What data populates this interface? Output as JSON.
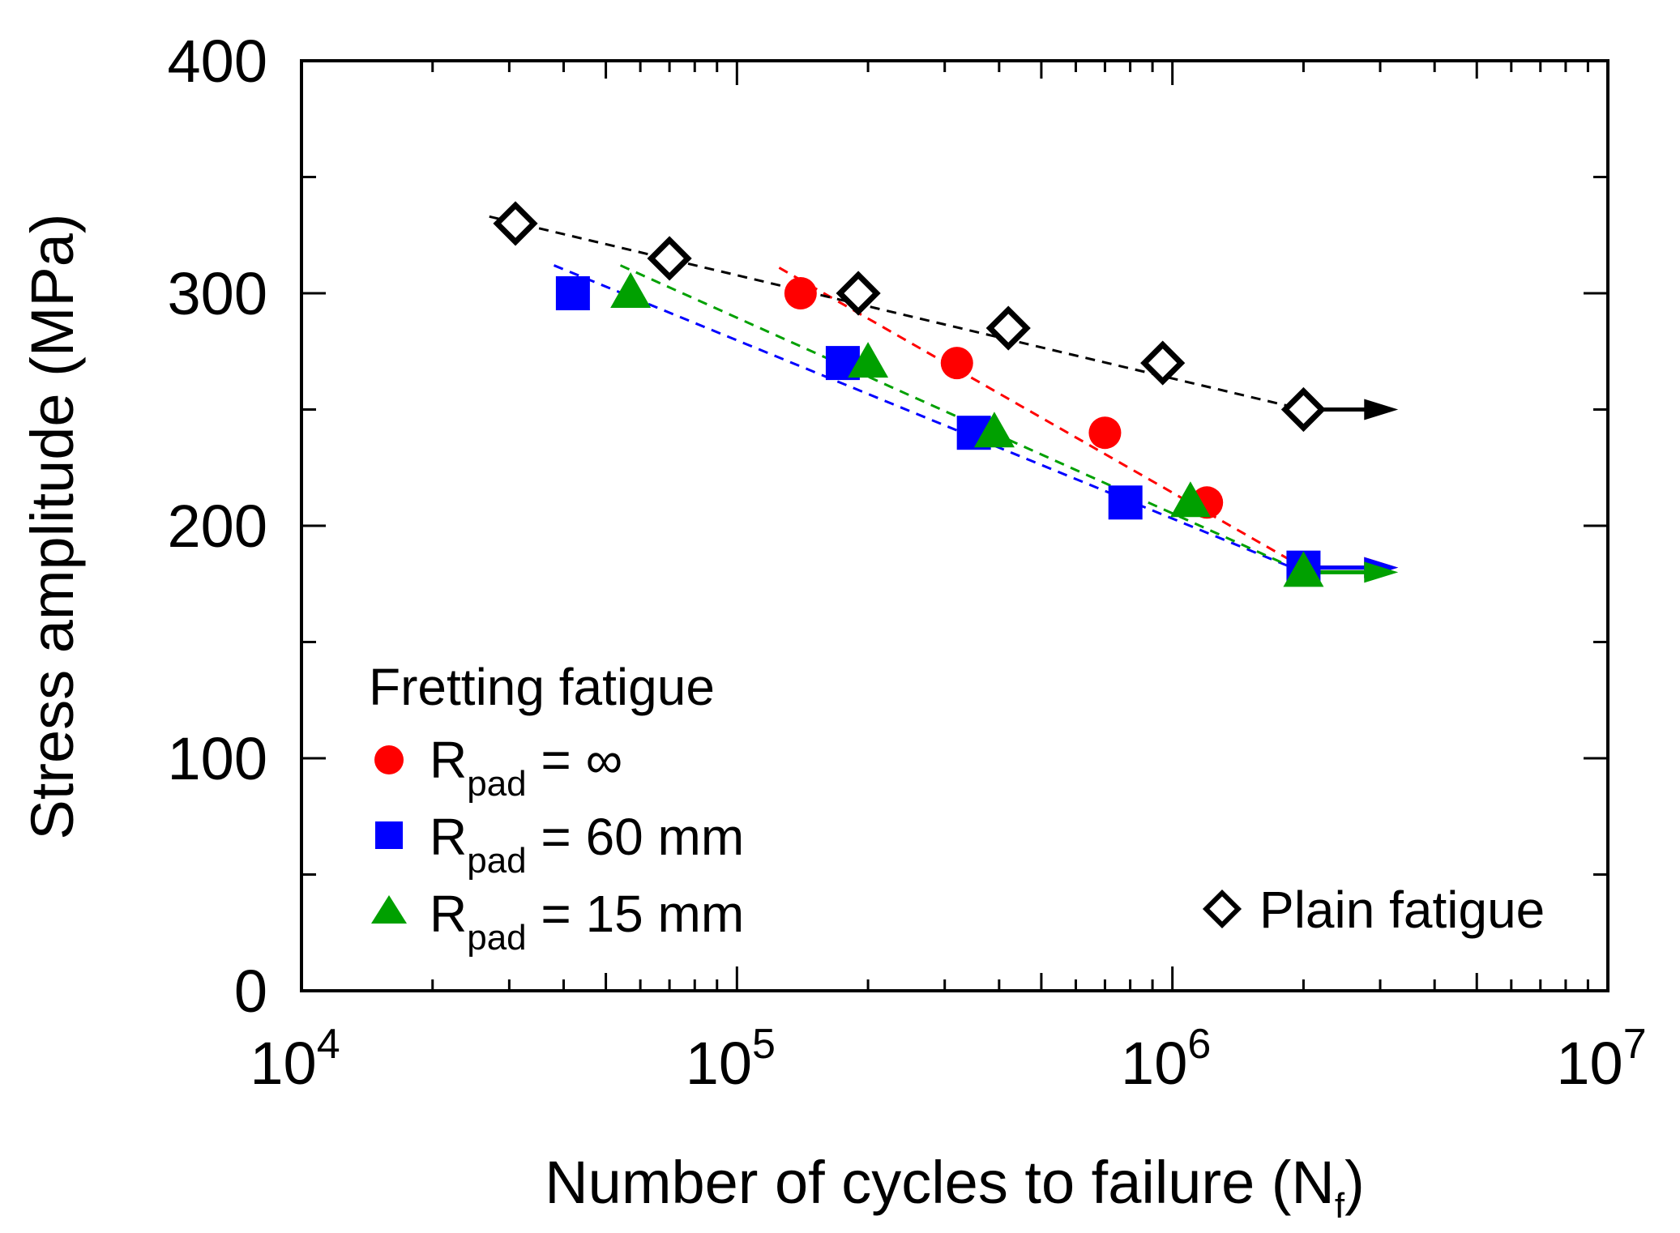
{
  "chart_data": {
    "type": "scatter",
    "x_scale": "log",
    "xlabel_main": "Number of cycles to failure (N",
    "xlabel_sub": "f",
    "xlabel_end": ")",
    "ylabel": "Stress amplitude (MPa)",
    "xlim": [
      10000,
      10000000
    ],
    "ylim": [
      0,
      400
    ],
    "x_ticks": [
      {
        "value": 10000,
        "base": "10",
        "exp": "4"
      },
      {
        "value": 100000,
        "base": "10",
        "exp": "5"
      },
      {
        "value": 1000000,
        "base": "10",
        "exp": "6"
      },
      {
        "value": 10000000,
        "base": "10",
        "exp": "7"
      }
    ],
    "y_ticks": [
      {
        "value": 0,
        "label": "0"
      },
      {
        "value": 100,
        "label": "100"
      },
      {
        "value": 200,
        "label": "200"
      },
      {
        "value": 300,
        "label": "300"
      },
      {
        "value": 400,
        "label": "400"
      }
    ],
    "legend_title": "Fretting fatigue",
    "series": [
      {
        "id": "rpad-inf",
        "label_main": "R",
        "label_sub": "pad",
        "label_rest": " = ∞",
        "marker": "circle",
        "color": "#ff0000",
        "points": [
          [
            140000,
            300
          ],
          [
            320000,
            270
          ],
          [
            700000,
            240
          ],
          [
            1200000,
            210
          ],
          [
            2000000,
            182
          ]
        ],
        "trend": [
          [
            125000,
            311
          ],
          [
            2000000,
            182
          ]
        ],
        "runout": {
          "x": 2000000,
          "y": 182,
          "x_end": 3300000
        }
      },
      {
        "id": "rpad-60",
        "label_main": "R",
        "label_sub": "pad",
        "label_rest": " = 60 mm",
        "marker": "square",
        "color": "#0000ff",
        "points": [
          [
            42000,
            300
          ],
          [
            175000,
            270
          ],
          [
            350000,
            240
          ],
          [
            780000,
            210
          ],
          [
            2000000,
            182
          ]
        ],
        "trend": [
          [
            38000,
            312
          ],
          [
            2000000,
            180
          ]
        ],
        "runout": {
          "x": 2000000,
          "y": 182,
          "x_end": 3300000
        }
      },
      {
        "id": "rpad-15",
        "label_main": "R",
        "label_sub": "pad",
        "label_rest": " = 15 mm",
        "marker": "triangle",
        "color": "#00a000",
        "points": [
          [
            57000,
            300
          ],
          [
            200000,
            270
          ],
          [
            390000,
            240
          ],
          [
            1100000,
            210
          ],
          [
            2000000,
            180
          ]
        ],
        "trend": [
          [
            54000,
            312
          ],
          [
            2000000,
            180
          ]
        ],
        "runout": {
          "x": 2000000,
          "y": 180,
          "x_end": 3300000
        }
      },
      {
        "id": "plain",
        "label": "Plain fatigue",
        "marker": "diamond",
        "color": "#000000",
        "points": [
          [
            31000,
            330
          ],
          [
            70000,
            315
          ],
          [
            190000,
            300
          ],
          [
            420000,
            285
          ],
          [
            950000,
            270
          ],
          [
            2000000,
            250
          ]
        ],
        "trend": [
          [
            27000,
            333
          ],
          [
            2000000,
            250
          ]
        ],
        "runout": {
          "x": 2000000,
          "y": 250,
          "x_end": 3300000
        }
      }
    ]
  }
}
